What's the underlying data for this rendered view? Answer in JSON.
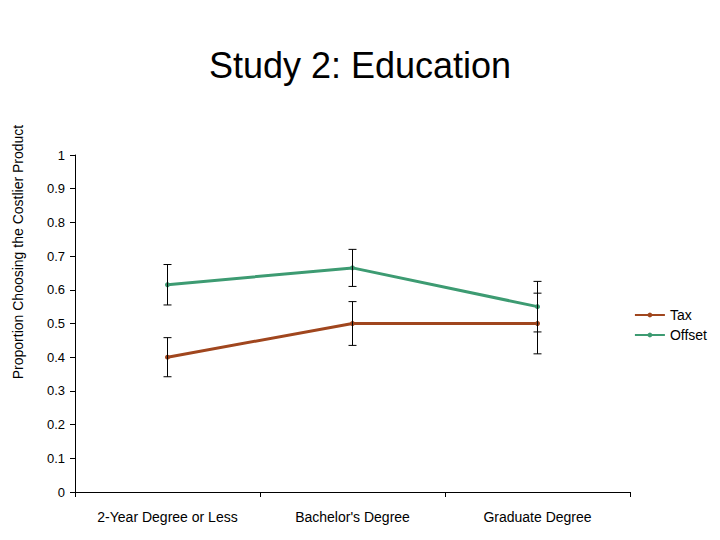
{
  "chart_data": {
    "type": "line",
    "title": "Study 2: Education",
    "y_label": "Proportion Choosing the Costlier Product",
    "categories": [
      "2-Year Degree or Less",
      "Bachelor's Degree",
      "Graduate Degree"
    ],
    "series": [
      {
        "name": "Tax",
        "color": "#a0461e",
        "values": [
          0.4,
          0.5,
          0.5
        ],
        "errors": [
          0.058,
          0.065,
          0.09
        ],
        "marker": "circle"
      },
      {
        "name": "Offset",
        "color": "#3d9b72",
        "values": [
          0.615,
          0.665,
          0.55
        ],
        "errors": [
          0.06,
          0.055,
          0.075
        ],
        "marker": "circle"
      }
    ],
    "ylim": [
      0,
      1
    ],
    "yticks": [
      0,
      0.1,
      0.2,
      0.3,
      0.4,
      0.5,
      0.6,
      0.7,
      0.8,
      0.9,
      1
    ],
    "grid": false,
    "legend": "right"
  }
}
